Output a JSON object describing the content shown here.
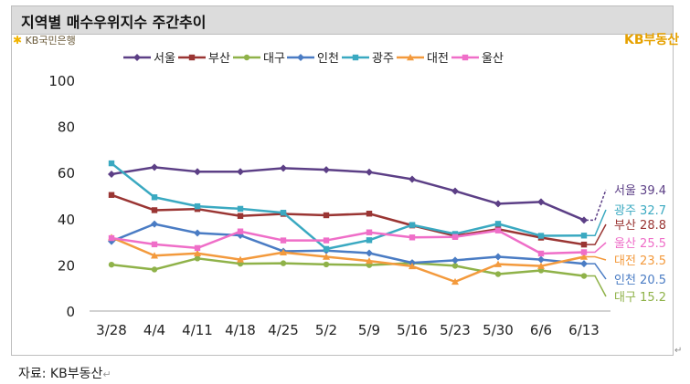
{
  "header": {
    "title": "지역별 매수우위지수 주간추이"
  },
  "logo": {
    "text": "KB국민은행"
  },
  "brand": {
    "text": "KB부동산"
  },
  "source": {
    "text": "자료: KB부동산",
    "return_mark": "↵"
  },
  "corner_mark": "↵",
  "chart_data": {
    "type": "line",
    "categories": [
      "3/28",
      "4/4",
      "4/11",
      "4/18",
      "4/25",
      "5/2",
      "5/9",
      "5/16",
      "5/23",
      "5/30",
      "6/6",
      "6/13"
    ],
    "ylim": [
      0,
      100
    ],
    "yticks": [
      0,
      20,
      40,
      60,
      80,
      100
    ],
    "grid": false,
    "legend": "top",
    "series": [
      {
        "name": "서울",
        "color": "#5c3f86",
        "marker": "diamond",
        "label": "서울 39.4",
        "values": [
          59.3,
          62.3,
          60.4,
          60.4,
          61.9,
          61.2,
          60.2,
          57.1,
          52.0,
          46.5,
          47.3,
          39.4
        ]
      },
      {
        "name": "부산",
        "color": "#9a3533",
        "marker": "square",
        "label": "부산 28.8",
        "values": [
          50.3,
          43.7,
          44.2,
          41.2,
          42.1,
          41.5,
          42.2,
          37.1,
          32.6,
          35.5,
          31.8,
          28.8
        ]
      },
      {
        "name": "대구",
        "color": "#8fb249",
        "marker": "circle",
        "label": "대구 15.2",
        "values": [
          20.1,
          18.0,
          22.8,
          20.5,
          20.7,
          20.2,
          19.9,
          20.8,
          19.6,
          16.0,
          17.6,
          15.2
        ]
      },
      {
        "name": "인천",
        "color": "#4a7cc4",
        "marker": "diamond",
        "label": "인천 20.5",
        "values": [
          30.2,
          37.7,
          33.8,
          32.8,
          25.9,
          26.2,
          25.1,
          20.9,
          22.0,
          23.5,
          22.3,
          20.5
        ]
      },
      {
        "name": "광주",
        "color": "#3aa9c1",
        "marker": "square",
        "label": "광주 32.7",
        "values": [
          64.0,
          49.3,
          45.4,
          44.3,
          42.6,
          26.9,
          30.7,
          37.3,
          33.4,
          37.8,
          32.6,
          32.7
        ]
      },
      {
        "name": "대전",
        "color": "#f39a3d",
        "marker": "triangle",
        "label": "대전 23.5",
        "values": [
          31.9,
          24.0,
          25.0,
          22.3,
          25.4,
          23.5,
          21.7,
          19.4,
          12.7,
          20.3,
          19.5,
          23.5
        ]
      },
      {
        "name": "울산",
        "color": "#ef6ec8",
        "marker": "square",
        "label": "울산 25.5",
        "values": [
          31.6,
          28.9,
          27.3,
          34.5,
          30.6,
          30.6,
          34.1,
          31.9,
          32.1,
          34.9,
          24.9,
          25.5
        ]
      }
    ]
  }
}
